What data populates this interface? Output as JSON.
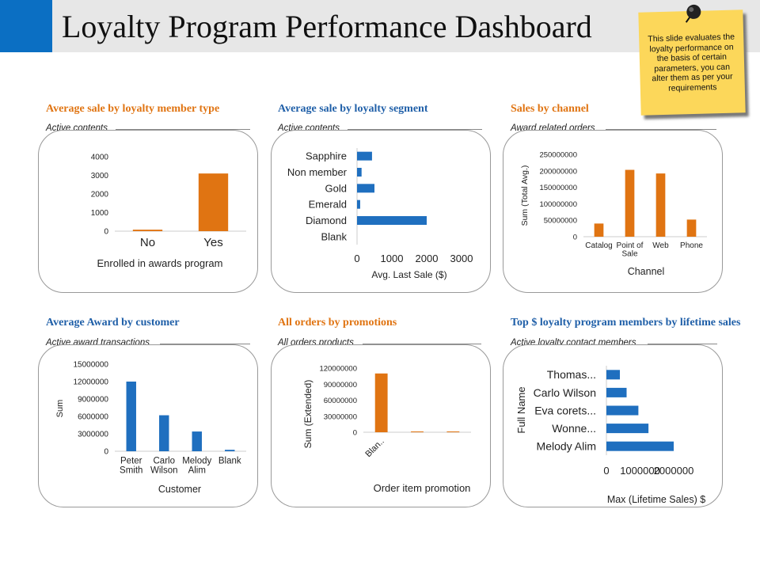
{
  "page": {
    "title": "Loyalty Program Performance Dashboard",
    "note": "This slide evaluates the loyalty performance on the basis of certain parameters, you can alter them as per your requirements"
  },
  "colors": {
    "orange": "#e07412",
    "blue": "#1f6fbf",
    "accent": "#0b6fc3",
    "note": "#fcd75a"
  },
  "panels": [
    {
      "title": "Average sale by loyalty member type",
      "subtitle": "Active contents"
    },
    {
      "title": "Average sale by loyalty segment",
      "subtitle": "Active contents"
    },
    {
      "title": "Sales by channel",
      "subtitle": "Award related orders"
    },
    {
      "title": "Average Award by customer",
      "subtitle": "Active award transactions"
    },
    {
      "title": "All orders by promotions",
      "subtitle": "All orders products"
    },
    {
      "title": "Top $ loyalty program members by lifetime sales",
      "subtitle": "Active loyalty contact members"
    }
  ],
  "chart_data": [
    {
      "type": "bar",
      "orientation": "vertical",
      "color": "orange",
      "categories": [
        "No",
        "Yes"
      ],
      "values": [
        80,
        3100
      ],
      "yticks": [
        "0",
        "1000",
        "2000",
        "3000",
        "4000"
      ],
      "xlabel": "Enrolled in awards program",
      "ylabel": "",
      "ylim": [
        0,
        4000
      ]
    },
    {
      "type": "bar",
      "orientation": "horizontal",
      "color": "blue",
      "categories": [
        "Sapphire",
        "Non member",
        "Gold",
        "Emerald",
        "Diamond",
        "Blank"
      ],
      "values": [
        430,
        130,
        500,
        90,
        2000,
        0
      ],
      "xticks": [
        "0",
        "1000",
        "2000",
        "3000"
      ],
      "xlabel": "Avg. Last Sale ($)",
      "ylabel": "",
      "xlim": [
        0,
        3000
      ]
    },
    {
      "type": "bar",
      "orientation": "vertical",
      "color": "orange",
      "categories": [
        "Catalog",
        "Point of Sale",
        "Web",
        "Phone"
      ],
      "values": [
        40000000,
        203000000,
        192000000,
        52000000
      ],
      "yticks": [
        "0",
        "50000000",
        "100000000",
        "150000000",
        "200000000",
        "250000000"
      ],
      "xlabel": "Channel",
      "ylabel": "Sum (Total Avg.)",
      "ylim": [
        0,
        250000000
      ]
    },
    {
      "type": "bar",
      "orientation": "vertical",
      "color": "blue",
      "categories": [
        "Peter Smith",
        "Carlo Wilson",
        "Melody Alim",
        "Blank"
      ],
      "values": [
        12000000,
        6200000,
        3400000,
        250000
      ],
      "yticks": [
        "0",
        "3000000",
        "6000000",
        "9000000",
        "12000000",
        "15000000"
      ],
      "xlabel": "Customer",
      "ylabel": "Sum",
      "ylim": [
        0,
        15000000
      ]
    },
    {
      "type": "bar",
      "orientation": "vertical",
      "color": "orange",
      "categories": [
        "Blan..",
        "",
        ""
      ],
      "values": [
        110000000,
        1500000,
        1500000
      ],
      "yticks": [
        "0",
        "30000000",
        "60000000",
        "90000000",
        "120000000"
      ],
      "xlabel": "Order item promotion",
      "ylabel": "Sum (Extended)",
      "ylim": [
        0,
        120000000
      ]
    },
    {
      "type": "bar",
      "orientation": "horizontal",
      "color": "blue",
      "categories": [
        "Thomas...",
        "Carlo Wilson",
        "Eva corets...",
        "Wonne...",
        "Melody Alim"
      ],
      "values": [
        400000,
        600000,
        950000,
        1250000,
        2000000
      ],
      "xticks": [
        "0",
        "1000000",
        "2000000"
      ],
      "xlabel": "Max (Lifetime Sales) $",
      "ylabel": "Full Name",
      "xlim": [
        0,
        2000000
      ]
    }
  ]
}
